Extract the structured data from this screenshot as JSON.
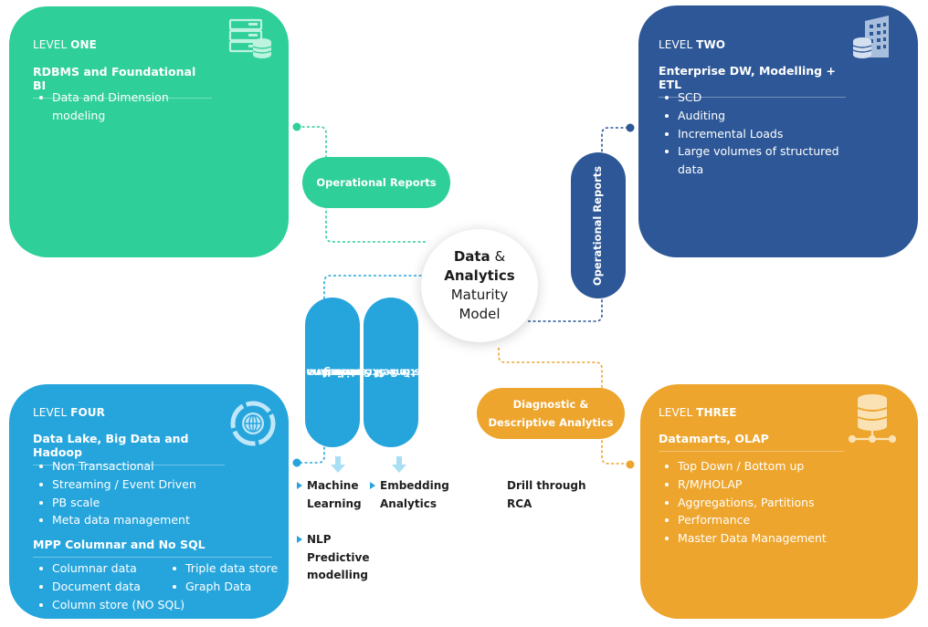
{
  "center": {
    "line1a": "Data",
    "line1b": "&",
    "line2": "Analytics",
    "line3": "Maturity",
    "line4": "Model"
  },
  "level_one": {
    "prefix": "LEVEL",
    "suffix": "ONE",
    "subtitle": "RDBMS and Foundational BI",
    "items": [
      "Data and Dimension modeling"
    ],
    "icon": "database-server-icon"
  },
  "level_two": {
    "prefix": "LEVEL",
    "suffix": "TWO",
    "subtitle": "Enterprise DW, Modelling + ETL",
    "items": [
      "SCD",
      "Auditing",
      "Incremental Loads",
      "Large volumes of structured data"
    ],
    "icon": "building-database-icon"
  },
  "level_three": {
    "prefix": "LEVEL",
    "suffix": "THREE",
    "subtitle": "Datamarts, OLAP",
    "items": [
      "Top Down / Bottom up",
      "R/M/HOLAP",
      "Aggregations, Partitions",
      "Performance",
      "Master Data Management"
    ],
    "icon": "database-network-icon"
  },
  "level_four": {
    "prefix": "LEVEL",
    "suffix": "FOUR",
    "subtitle": "Data Lake, Big Data and Hadoop",
    "items": [
      "Non Transactional",
      "Streaming / Event Driven",
      "PB scale",
      "Meta data management"
    ],
    "subtitle2": "MPP Columnar and No SQL",
    "col_left": [
      "Columnar data",
      "Document data",
      "Column store (NO SQL)"
    ],
    "col_right": [
      "Triple data store",
      "Graph Data"
    ],
    "icon": "globe-chart-icon"
  },
  "pills": {
    "operational_reports_1": "Operational Reports",
    "operational_reports_2": "Operational Reports",
    "predictive_line1": "Predictive and",
    "predictive_line2": "Prescriptive Analytics",
    "realtime_line1": "Real time Streaming",
    "realtime_line2": "Analytics & Self Service",
    "diagnostic_line1": "Diagnostic &",
    "diagnostic_line2": "Descriptive Analytics"
  },
  "notes": {
    "ml_line1": "Machine",
    "ml_line2": "Learning",
    "nlp_line1": "NLP",
    "nlp_line2": "Predictive",
    "nlp_line3": "modelling",
    "emb_line1": "Embedding",
    "emb_line2": "Analytics",
    "drill_line1": "Drill through",
    "drill_line2": "RCA"
  },
  "colors": {
    "level_one": "#2ecf99",
    "level_two": "#2d5796",
    "level_three": "#eda52d",
    "level_four": "#26a5dc"
  }
}
